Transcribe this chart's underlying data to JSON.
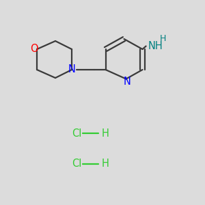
{
  "bg_color": "#dcdcdc",
  "bond_color": "#3a3a3a",
  "N_color": "#0000ff",
  "O_color": "#ff0000",
  "NH2_N_color": "#008080",
  "NH2_H_color": "#008080",
  "HCl_color": "#33cc33",
  "line_width": 1.6,
  "font_size": 10.5,
  "font_size_small": 9,
  "figsize": [
    3.0,
    3.0
  ],
  "dpi": 100,
  "xlim": [
    0,
    10
  ],
  "ylim": [
    0,
    10
  ]
}
